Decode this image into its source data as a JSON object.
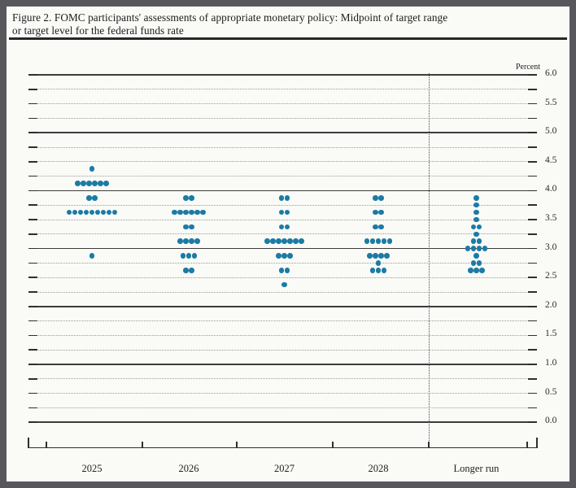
{
  "figure": {
    "title_line1": "Figure 2. FOMC participants' assessments of appropriate monetary policy: Midpoint of target range",
    "title_line2": "or target level for the federal funds rate"
  },
  "chart_data": {
    "type": "scatter",
    "subtype": "fomc-dot-plot",
    "title": "Figure 2. FOMC participants' assessments of appropriate monetary policy: Midpoint of target range or target level for the federal funds rate",
    "ylabel": "Percent",
    "ylim": [
      0.0,
      6.0
    ],
    "y_grid_step": 0.25,
    "y_label_step": 0.5,
    "y_tick_labels": [
      "6.0",
      "5.5",
      "5.0",
      "4.5",
      "4.0",
      "3.5",
      "3.0",
      "2.5",
      "2.0",
      "1.5",
      "1.0",
      "0.5",
      "0.0"
    ],
    "grid": true,
    "legend_position": "none",
    "categories": [
      "2025",
      "2026",
      "2027",
      "2028",
      "Longer run"
    ],
    "separator_before_category": "Longer run",
    "columns": [
      {
        "label": "2025",
        "dots": [
          {
            "rate": 4.375,
            "count": 1
          },
          {
            "rate": 4.125,
            "count": 6
          },
          {
            "rate": 3.875,
            "count": 2
          },
          {
            "rate": 3.625,
            "count": 9
          },
          {
            "rate": 2.875,
            "count": 1
          }
        ]
      },
      {
        "label": "2026",
        "dots": [
          {
            "rate": 3.875,
            "count": 2
          },
          {
            "rate": 3.625,
            "count": 6
          },
          {
            "rate": 3.375,
            "count": 2
          },
          {
            "rate": 3.125,
            "count": 4
          },
          {
            "rate": 2.875,
            "count": 3
          },
          {
            "rate": 2.625,
            "count": 2
          }
        ]
      },
      {
        "label": "2027",
        "dots": [
          {
            "rate": 3.875,
            "count": 2
          },
          {
            "rate": 3.625,
            "count": 2
          },
          {
            "rate": 3.375,
            "count": 2
          },
          {
            "rate": 3.125,
            "count": 7
          },
          {
            "rate": 2.875,
            "count": 3
          },
          {
            "rate": 2.625,
            "count": 2
          },
          {
            "rate": 2.375,
            "count": 1
          }
        ]
      },
      {
        "label": "2028",
        "dots": [
          {
            "rate": 3.875,
            "count": 2
          },
          {
            "rate": 3.625,
            "count": 2
          },
          {
            "rate": 3.375,
            "count": 2
          },
          {
            "rate": 3.125,
            "count": 5
          },
          {
            "rate": 2.875,
            "count": 4
          },
          {
            "rate": 2.75,
            "count": 1
          },
          {
            "rate": 2.625,
            "count": 3
          }
        ]
      },
      {
        "label": "Longer run",
        "dots": [
          {
            "rate": 3.875,
            "count": 1
          },
          {
            "rate": 3.75,
            "count": 1
          },
          {
            "rate": 3.625,
            "count": 1
          },
          {
            "rate": 3.5,
            "count": 1
          },
          {
            "rate": 3.375,
            "count": 2
          },
          {
            "rate": 3.25,
            "count": 1
          },
          {
            "rate": 3.125,
            "count": 2
          },
          {
            "rate": 3.0,
            "count": 4
          },
          {
            "rate": 2.875,
            "count": 1
          },
          {
            "rate": 2.75,
            "count": 2
          },
          {
            "rate": 2.625,
            "count": 3
          }
        ]
      }
    ],
    "colors": {
      "dot": "#1b7ba5",
      "solid_gridline": "#3c3c3c",
      "dotted_gridline": "#9b9b9b",
      "axis": "#2e2e2e",
      "text": "#222222",
      "frame": "#58585c",
      "background": "#fafaf7"
    }
  }
}
